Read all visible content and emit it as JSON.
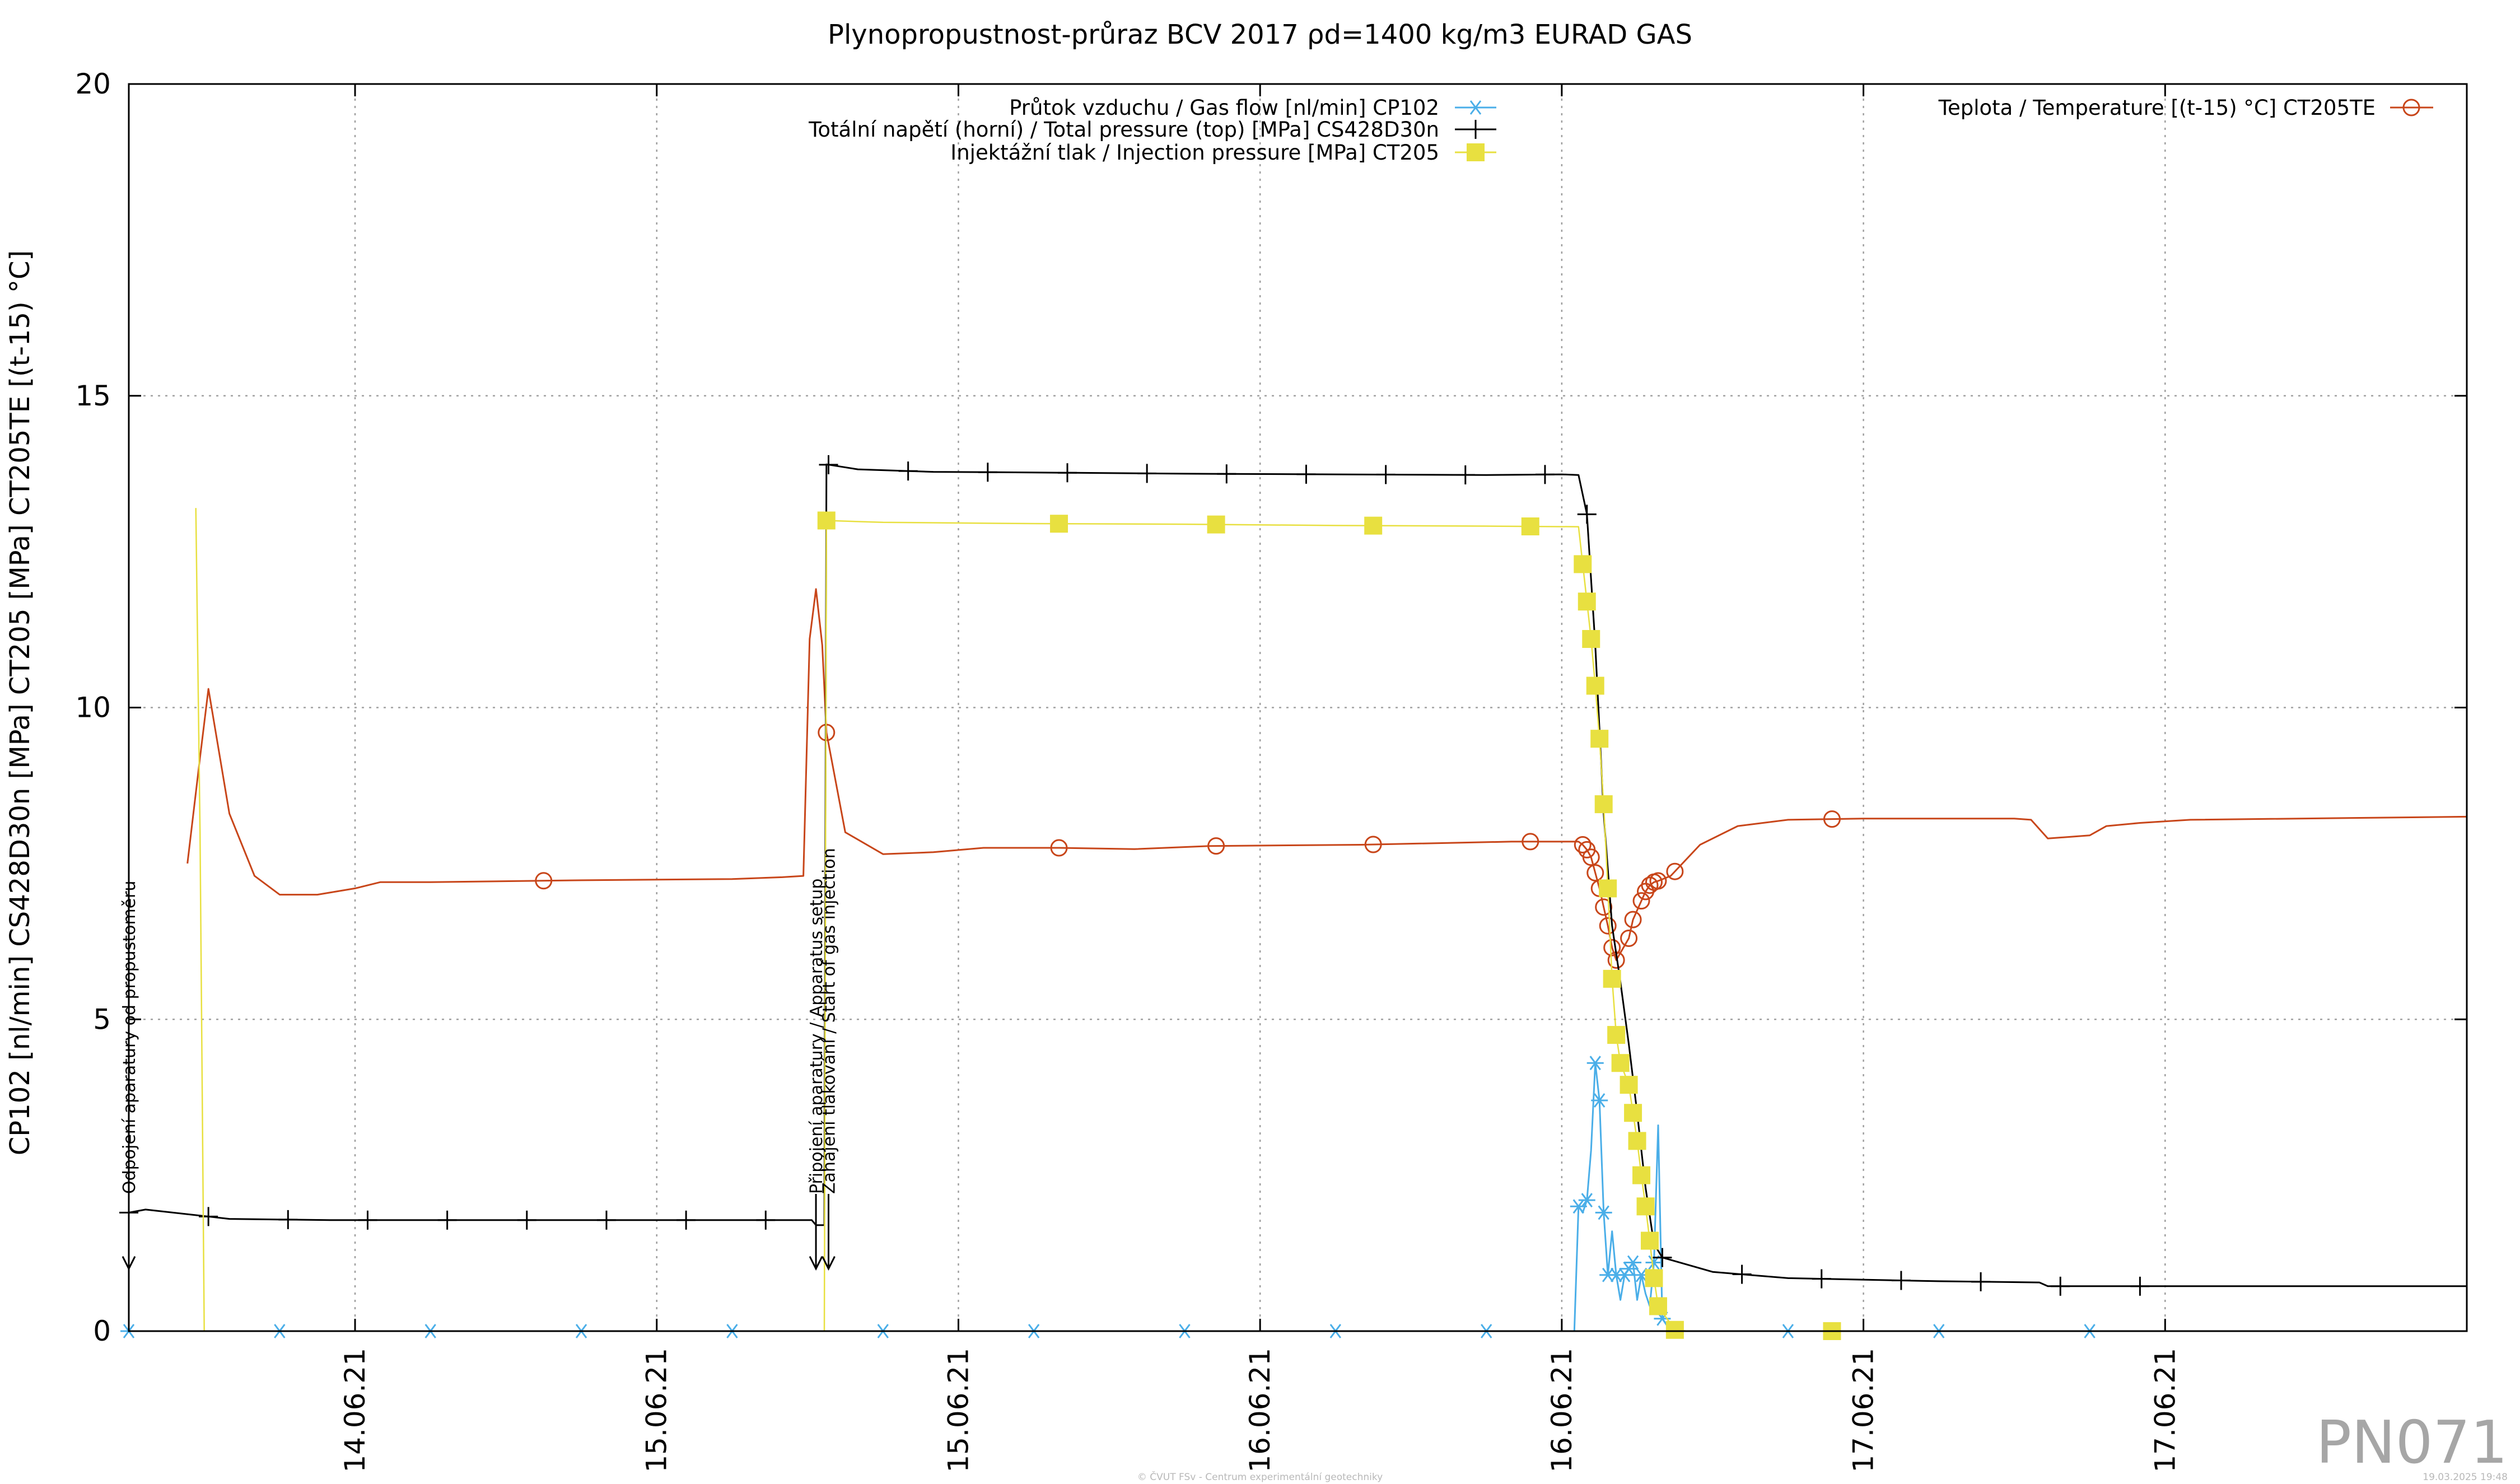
{
  "chart_data": {
    "type": "line",
    "title": "Plynopropustnost-průraz BCV 2017 ρd=1400 kg/m3 EURAD GAS",
    "ylabel": "CP102 [nl/min] CS428D30n [MPa] CT205 [MPa] CT205TE [(t-15) °C]",
    "xlabel": "",
    "xlim": [
      "2021-06-13 12:00",
      "2021-06-17 09:00"
    ],
    "ylim": [
      0,
      20
    ],
    "yticks": [
      0,
      5,
      10,
      15,
      20
    ],
    "xticks": [
      {
        "at": "2021-06-13 21:00",
        "label": "14.06.21"
      },
      {
        "at": "2021-06-14 09:00",
        "label": "15.06.21"
      },
      {
        "at": "2021-06-14 21:00",
        "label": "15.06.21"
      },
      {
        "at": "2021-06-15 09:00",
        "label": "16.06.21"
      },
      {
        "at": "2021-06-15 21:00",
        "label": "16.06.21"
      },
      {
        "at": "2021-06-16 09:00",
        "label": "17.06.21"
      },
      {
        "at": "2021-06-16 21:00",
        "label": "17.06.21"
      }
    ],
    "grid": true,
    "legend_placement": "top",
    "series": [
      {
        "name": "Průtok vzduchu / Gas flow [nl/min] CP102",
        "color": "#4aaee8",
        "marker": "asterisk",
        "points": [
          [
            "2021-06-13 12:00",
            0
          ],
          [
            "2021-06-15 21:30",
            0
          ],
          [
            "2021-06-15 21:40",
            2.0
          ],
          [
            "2021-06-15 21:50",
            1.9
          ],
          [
            "2021-06-15 22:00",
            2.1
          ],
          [
            "2021-06-15 22:10",
            2.9
          ],
          [
            "2021-06-15 22:20",
            4.3
          ],
          [
            "2021-06-15 22:30",
            3.7
          ],
          [
            "2021-06-15 22:40",
            1.9
          ],
          [
            "2021-06-15 22:50",
            0.9
          ],
          [
            "2021-06-15 23:00",
            1.6
          ],
          [
            "2021-06-15 23:10",
            0.9
          ],
          [
            "2021-06-15 23:20",
            0.5
          ],
          [
            "2021-06-15 23:30",
            0.9
          ],
          [
            "2021-06-15 23:40",
            1.0
          ],
          [
            "2021-06-15 23:50",
            1.1
          ],
          [
            "2021-06-16 00:00",
            0.5
          ],
          [
            "2021-06-16 00:10",
            0.9
          ],
          [
            "2021-06-16 00:20",
            0.6
          ],
          [
            "2021-06-16 00:30",
            0.4
          ],
          [
            "2021-06-16 00:40",
            1.1
          ],
          [
            "2021-06-16 00:50",
            3.3
          ],
          [
            "2021-06-16 01:00",
            0.2
          ],
          [
            "2021-06-16 01:20",
            0
          ],
          [
            "2021-06-17 09:00",
            0
          ]
        ],
        "markers_at": [
          "2021-06-13 12:00",
          "2021-06-13 18:00",
          "2021-06-14 00:00",
          "2021-06-14 06:00",
          "2021-06-14 12:00",
          "2021-06-14 18:00",
          "2021-06-15 00:00",
          "2021-06-15 06:00",
          "2021-06-15 12:00",
          "2021-06-15 18:00",
          "2021-06-15 21:40",
          "2021-06-15 22:00",
          "2021-06-15 22:20",
          "2021-06-15 22:30",
          "2021-06-15 22:40",
          "2021-06-15 22:50",
          "2021-06-15 23:10",
          "2021-06-15 23:30",
          "2021-06-15 23:40",
          "2021-06-15 23:50",
          "2021-06-16 00:10",
          "2021-06-16 00:40",
          "2021-06-16 01:00",
          "2021-06-16 06:00",
          "2021-06-16 12:00",
          "2021-06-16 18:00"
        ]
      },
      {
        "name": "Totální napětí (horní) / Total pressure (top) [MPa] CS428D30n",
        "color": "#000000",
        "marker": "plus",
        "points": [
          [
            "2021-06-13 12:00",
            1.9
          ],
          [
            "2021-06-13 12:40",
            1.95
          ],
          [
            "2021-06-13 16:00",
            1.8
          ],
          [
            "2021-06-13 20:00",
            1.78
          ],
          [
            "2021-06-14 00:00",
            1.78
          ],
          [
            "2021-06-14 06:00",
            1.78
          ],
          [
            "2021-06-14 12:00",
            1.78
          ],
          [
            "2021-06-14 14:00",
            1.78
          ],
          [
            "2021-06-14 15:10",
            1.78
          ],
          [
            "2021-06-14 15:20",
            1.7
          ],
          [
            "2021-06-14 15:40",
            1.7
          ],
          [
            "2021-06-14 15:45",
            13.9
          ],
          [
            "2021-06-14 17:00",
            13.82
          ],
          [
            "2021-06-14 20:00",
            13.78
          ],
          [
            "2021-06-15 00:00",
            13.77
          ],
          [
            "2021-06-15 06:00",
            13.75
          ],
          [
            "2021-06-15 12:00",
            13.74
          ],
          [
            "2021-06-15 18:00",
            13.73
          ],
          [
            "2021-06-15 21:00",
            13.74
          ],
          [
            "2021-06-15 21:40",
            13.73
          ],
          [
            "2021-06-15 22:00",
            13.1
          ],
          [
            "2021-06-15 22:20",
            11.0
          ],
          [
            "2021-06-15 22:40",
            8.3
          ],
          [
            "2021-06-15 23:00",
            6.5
          ],
          [
            "2021-06-15 23:20",
            5.6
          ],
          [
            "2021-06-15 23:40",
            4.6
          ],
          [
            "2021-06-16 00:00",
            3.5
          ],
          [
            "2021-06-16 00:20",
            2.3
          ],
          [
            "2021-06-16 00:40",
            1.4
          ],
          [
            "2021-06-16 01:00",
            1.18
          ],
          [
            "2021-06-16 03:00",
            0.95
          ],
          [
            "2021-06-16 06:00",
            0.85
          ],
          [
            "2021-06-16 12:00",
            0.8
          ],
          [
            "2021-06-16 16:00",
            0.78
          ],
          [
            "2021-06-16 16:20",
            0.72
          ],
          [
            "2021-06-16 22:00",
            0.72
          ],
          [
            "2021-06-17 09:00",
            0.72
          ]
        ],
        "markers_at": [
          "2021-06-13 12:00",
          "2021-06-13 15:10",
          "2021-06-13 18:20",
          "2021-06-13 21:30",
          "2021-06-14 00:40",
          "2021-06-14 03:50",
          "2021-06-14 07:00",
          "2021-06-14 10:10",
          "2021-06-14 13:20",
          "2021-06-14 15:50",
          "2021-06-14 19:00",
          "2021-06-14 22:10",
          "2021-06-15 01:20",
          "2021-06-15 04:30",
          "2021-06-15 07:40",
          "2021-06-15 10:50",
          "2021-06-15 14:00",
          "2021-06-15 17:10",
          "2021-06-15 20:20",
          "2021-06-15 22:00",
          "2021-06-16 01:00",
          "2021-06-16 04:10",
          "2021-06-16 07:20",
          "2021-06-16 10:30",
          "2021-06-16 13:40",
          "2021-06-16 16:50",
          "2021-06-16 20:00"
        ]
      },
      {
        "name": "Injektážní tlak / Injection pressure [MPa] CT205",
        "color": "#e8e040",
        "marker": "square",
        "points": [
          [
            "2021-06-13 14:40",
            13.2
          ],
          [
            "2021-06-13 14:50",
            8.0
          ],
          [
            "2021-06-13 15:00",
            0
          ],
          [
            "2021-06-14 15:30",
            0
          ],
          [
            "2021-06-14 15:40",
            0
          ],
          [
            "2021-06-14 15:45",
            13.0
          ],
          [
            "2021-06-14 18:00",
            12.97
          ],
          [
            "2021-06-15 00:00",
            12.95
          ],
          [
            "2021-06-15 06:00",
            12.94
          ],
          [
            "2021-06-15 12:00",
            12.92
          ],
          [
            "2021-06-15 18:00",
            12.91
          ],
          [
            "2021-06-15 21:40",
            12.9
          ],
          [
            "2021-06-15 21:50",
            12.3
          ],
          [
            "2021-06-15 22:00",
            11.7
          ],
          [
            "2021-06-15 22:10",
            11.1
          ],
          [
            "2021-06-15 22:20",
            10.35
          ],
          [
            "2021-06-15 22:30",
            9.5
          ],
          [
            "2021-06-15 22:40",
            8.45
          ],
          [
            "2021-06-15 22:50",
            7.1
          ],
          [
            "2021-06-15 23:00",
            5.65
          ],
          [
            "2021-06-15 23:10",
            4.75
          ],
          [
            "2021-06-15 23:20",
            4.3
          ],
          [
            "2021-06-15 23:40",
            3.95
          ],
          [
            "2021-06-15 23:50",
            3.5
          ],
          [
            "2021-06-16 00:00",
            3.05
          ],
          [
            "2021-06-16 00:10",
            2.5
          ],
          [
            "2021-06-16 00:20",
            2.0
          ],
          [
            "2021-06-16 00:30",
            1.45
          ],
          [
            "2021-06-16 00:40",
            0.85
          ],
          [
            "2021-06-16 00:50",
            0.4
          ],
          [
            "2021-06-16 01:30",
            0.02
          ],
          [
            "2021-06-16 02:00",
            0
          ],
          [
            "2021-06-17 09:00",
            0
          ]
        ],
        "markers_at": [
          "2021-06-14 15:45",
          "2021-06-15 01:00",
          "2021-06-15 07:15",
          "2021-06-15 13:30",
          "2021-06-15 19:45",
          "2021-06-15 21:50",
          "2021-06-15 22:00",
          "2021-06-15 22:10",
          "2021-06-15 22:20",
          "2021-06-15 22:30",
          "2021-06-15 22:40",
          "2021-06-15 22:50",
          "2021-06-15 23:00",
          "2021-06-15 23:10",
          "2021-06-15 23:20",
          "2021-06-15 23:40",
          "2021-06-15 23:50",
          "2021-06-16 00:00",
          "2021-06-16 00:10",
          "2021-06-16 00:20",
          "2021-06-16 00:30",
          "2021-06-16 00:40",
          "2021-06-16 00:50",
          "2021-06-16 01:30",
          "2021-06-16 07:45"
        ]
      },
      {
        "name": "Teplota / Temperature [(t-15) °C] CT205TE",
        "color": "#c8461a",
        "marker": "circle",
        "points": [
          [
            "2021-06-13 14:20",
            7.5
          ],
          [
            "2021-06-13 14:50",
            9.2
          ],
          [
            "2021-06-13 15:10",
            10.3
          ],
          [
            "2021-06-13 16:00",
            8.3
          ],
          [
            "2021-06-13 17:00",
            7.3
          ],
          [
            "2021-06-13 18:00",
            7.0
          ],
          [
            "2021-06-13 19:30",
            7.0
          ],
          [
            "2021-06-13 21:00",
            7.1
          ],
          [
            "2021-06-13 22:00",
            7.2
          ],
          [
            "2021-06-14 00:00",
            7.2
          ],
          [
            "2021-06-14 06:00",
            7.23
          ],
          [
            "2021-06-14 12:00",
            7.25
          ],
          [
            "2021-06-14 14:00",
            7.28
          ],
          [
            "2021-06-14 14:50",
            7.3
          ],
          [
            "2021-06-14 15:05",
            11.1
          ],
          [
            "2021-06-14 15:20",
            11.9
          ],
          [
            "2021-06-14 15:35",
            11.0
          ],
          [
            "2021-06-14 15:45",
            9.6
          ],
          [
            "2021-06-14 16:30",
            8.0
          ],
          [
            "2021-06-14 18:00",
            7.65
          ],
          [
            "2021-06-14 20:00",
            7.68
          ],
          [
            "2021-06-14 22:00",
            7.75
          ],
          [
            "2021-06-15 01:00",
            7.75
          ],
          [
            "2021-06-15 04:00",
            7.73
          ],
          [
            "2021-06-15 07:00",
            7.78
          ],
          [
            "2021-06-15 13:00",
            7.8
          ],
          [
            "2021-06-15 19:00",
            7.85
          ],
          [
            "2021-06-15 21:40",
            7.85
          ],
          [
            "2021-06-15 21:50",
            7.8
          ],
          [
            "2021-06-15 22:00",
            7.72
          ],
          [
            "2021-06-15 22:10",
            7.6
          ],
          [
            "2021-06-15 22:20",
            7.35
          ],
          [
            "2021-06-15 22:30",
            7.1
          ],
          [
            "2021-06-15 22:40",
            6.8
          ],
          [
            "2021-06-15 22:50",
            6.5
          ],
          [
            "2021-06-15 23:00",
            6.15
          ],
          [
            "2021-06-15 23:10",
            5.95
          ],
          [
            "2021-06-15 23:40",
            6.3
          ],
          [
            "2021-06-15 23:50",
            6.6
          ],
          [
            "2021-06-16 00:10",
            6.9
          ],
          [
            "2021-06-16 00:20",
            7.05
          ],
          [
            "2021-06-16 00:30",
            7.15
          ],
          [
            "2021-06-16 00:40",
            7.2
          ],
          [
            "2021-06-16 00:50",
            7.22
          ],
          [
            "2021-06-16 01:20",
            7.3
          ],
          [
            "2021-06-16 02:30",
            7.8
          ],
          [
            "2021-06-16 04:00",
            8.1
          ],
          [
            "2021-06-16 06:00",
            8.2
          ],
          [
            "2021-06-16 09:00",
            8.22
          ],
          [
            "2021-06-16 12:00",
            8.22
          ],
          [
            "2021-06-16 15:00",
            8.22
          ],
          [
            "2021-06-16 15:40",
            8.2
          ],
          [
            "2021-06-16 16:20",
            7.9
          ],
          [
            "2021-06-16 18:00",
            7.95
          ],
          [
            "2021-06-16 18:40",
            8.1
          ],
          [
            "2021-06-16 20:00",
            8.15
          ],
          [
            "2021-06-16 22:00",
            8.2
          ],
          [
            "2021-06-17 09:00",
            8.25
          ]
        ],
        "markers_at": [
          "2021-06-14 04:30",
          "2021-06-14 15:45",
          "2021-06-15 01:00",
          "2021-06-15 07:15",
          "2021-06-15 13:30",
          "2021-06-15 19:45",
          "2021-06-15 21:50",
          "2021-06-15 22:00",
          "2021-06-15 22:10",
          "2021-06-15 22:20",
          "2021-06-15 22:30",
          "2021-06-15 22:40",
          "2021-06-15 22:50",
          "2021-06-15 23:00",
          "2021-06-15 23:10",
          "2021-06-15 23:40",
          "2021-06-15 23:50",
          "2021-06-16 00:10",
          "2021-06-16 00:20",
          "2021-06-16 00:30",
          "2021-06-16 00:40",
          "2021-06-16 00:50",
          "2021-06-16 01:30",
          "2021-06-16 07:45"
        ]
      }
    ],
    "annotations": [
      {
        "at": "2021-06-13 12:00",
        "text": "Odpojení aparatury od propustoměru"
      },
      {
        "at": "2021-06-14 15:20",
        "text": "Připojení aparatury / Apparatus setup"
      },
      {
        "at": "2021-06-14 15:50",
        "text": "Zahájení tlakování / Start of gas injection"
      }
    ]
  },
  "watermark": "PN071",
  "footer": {
    "center": "© ČVUT FSv - Centrum experimentální geotechniky",
    "right": "19.03.2025 19:48"
  }
}
